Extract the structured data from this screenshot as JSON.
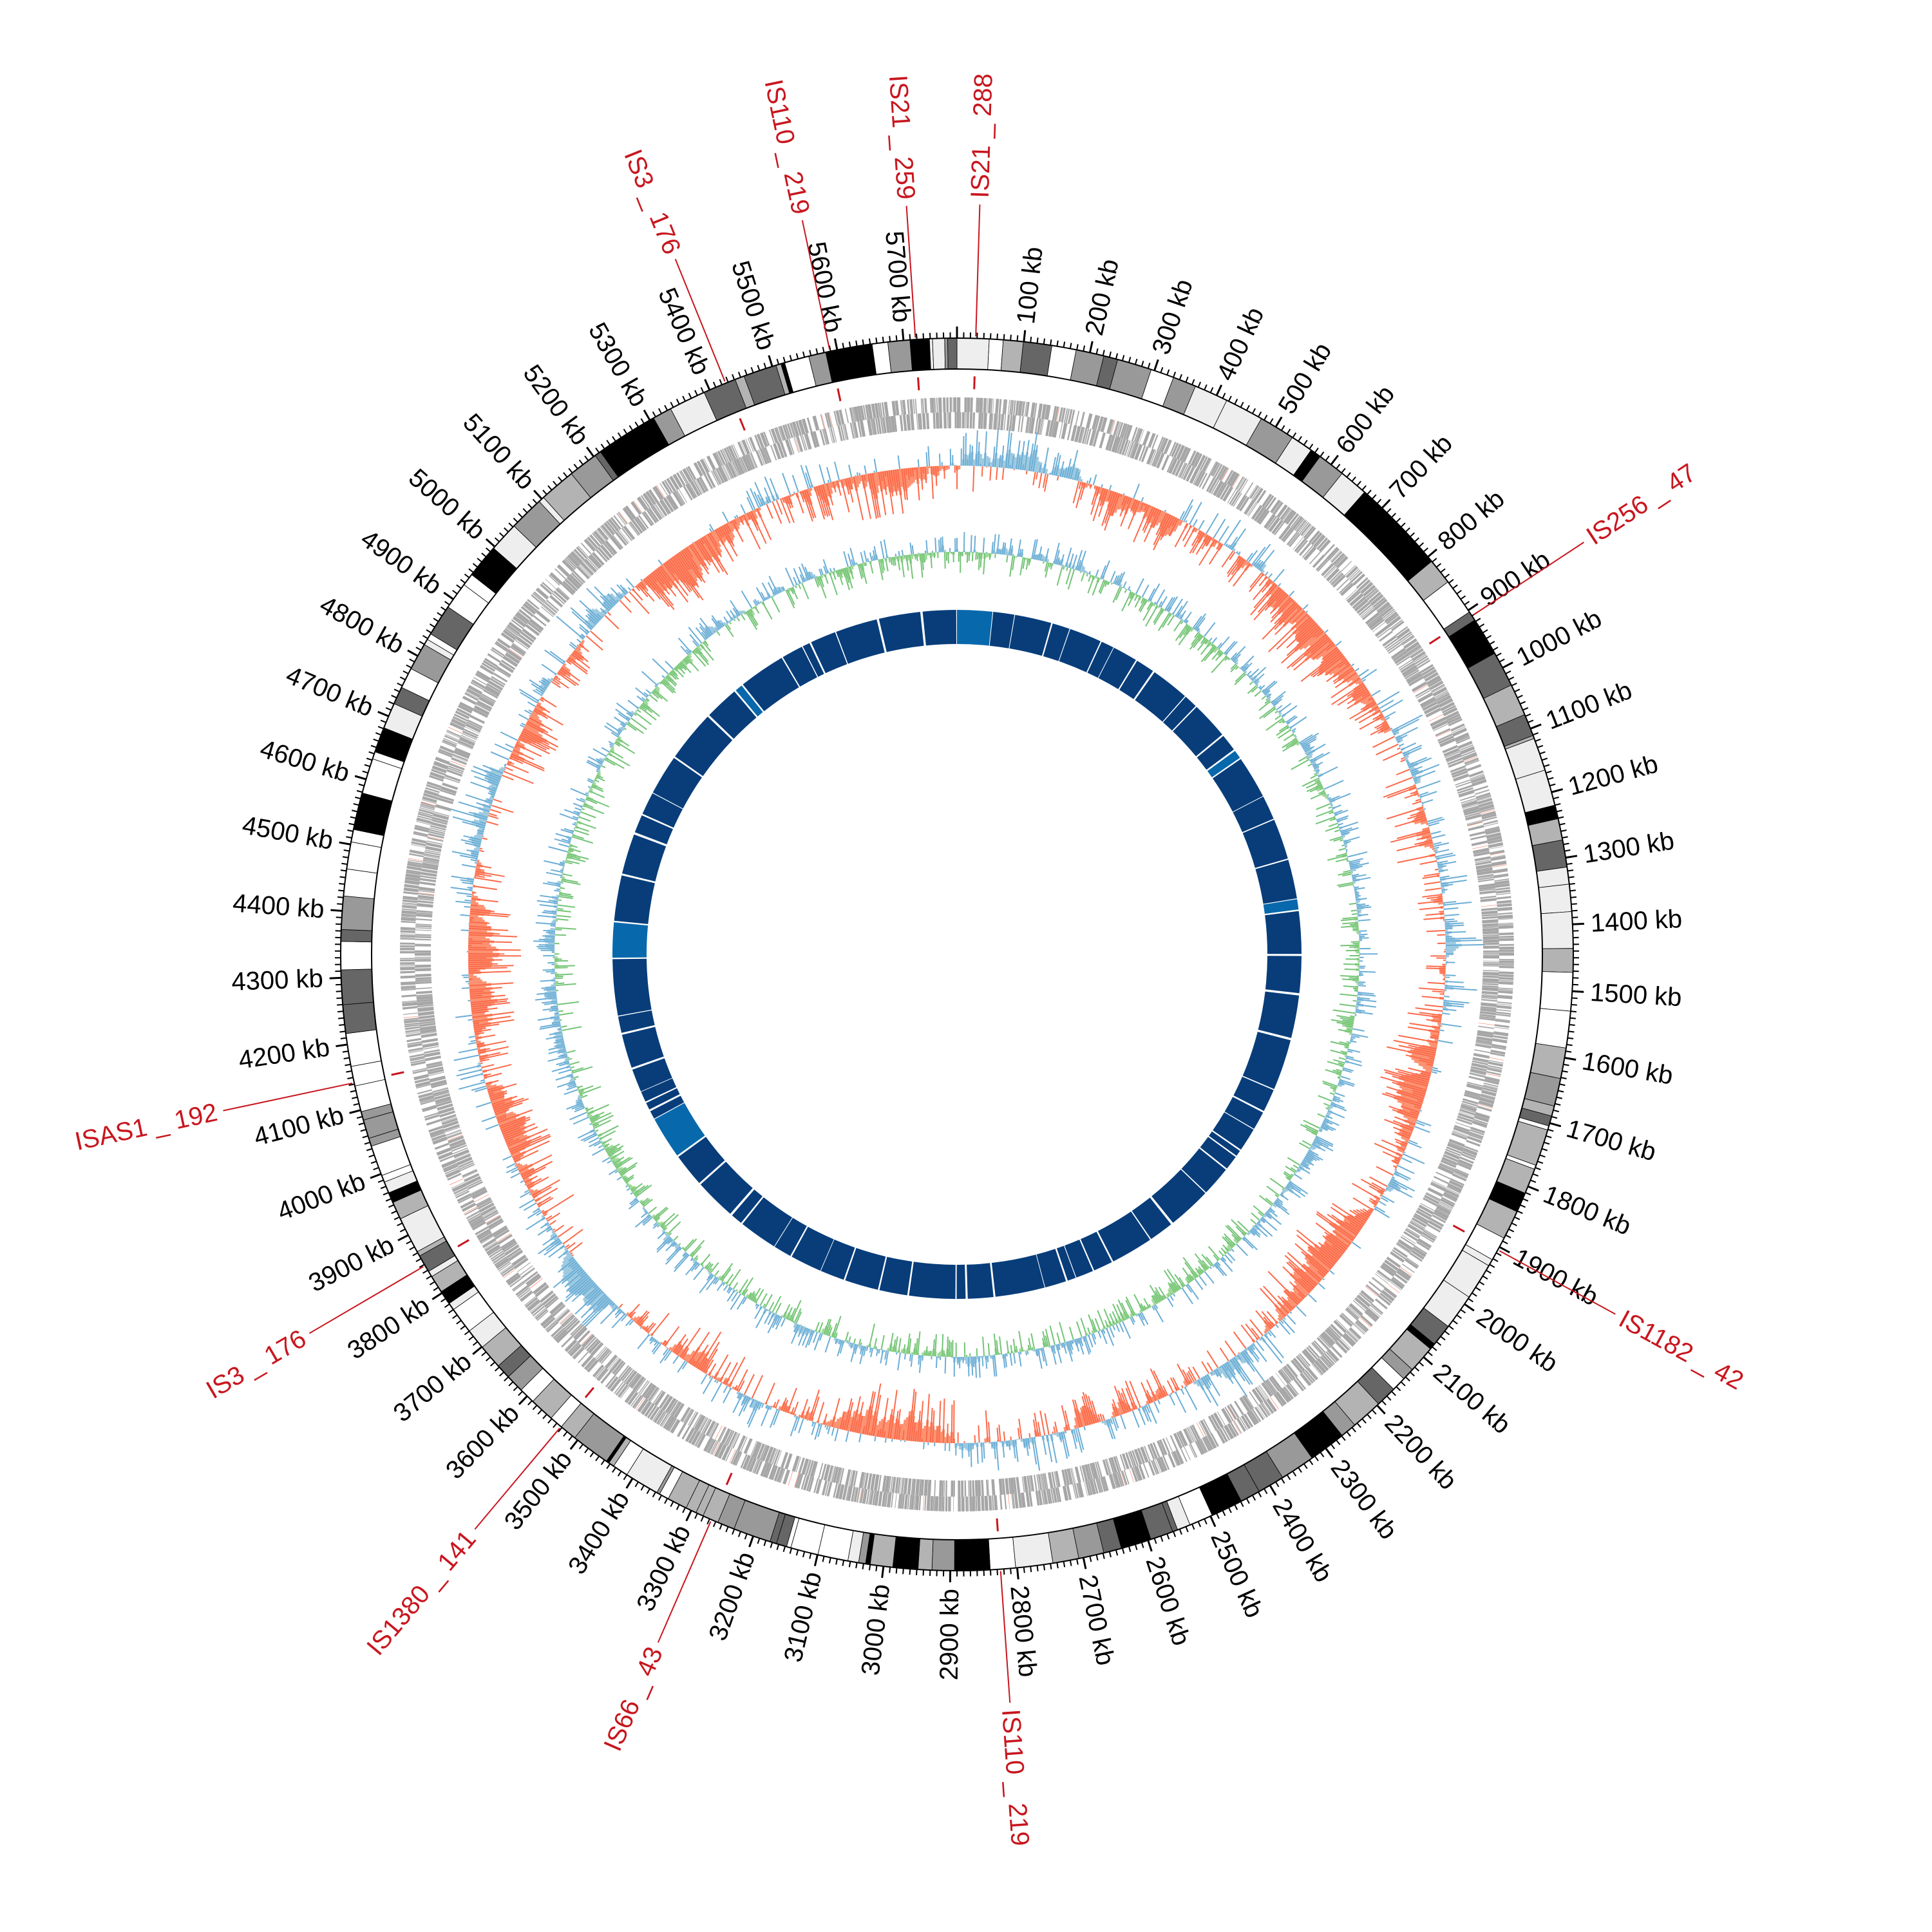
{
  "chart_data": {
    "type": "circular-genome",
    "title": "",
    "genome_length_kb": 5780,
    "minor_tick_step_kb": 10,
    "major_tick_step_kb": 100,
    "tick_labels": [
      "100 kb",
      "200 kb",
      "300 kb",
      "400 kb",
      "500 kb",
      "600 kb",
      "700 kb",
      "800 kb",
      "900 kb",
      "1000 kb",
      "1100 kb",
      "1200 kb",
      "1300 kb",
      "1400 kb",
      "1500 kb",
      "1600 kb",
      "1700 kb",
      "1800 kb",
      "1900 kb",
      "2000 kb",
      "2100 kb",
      "2200 kb",
      "2300 kb",
      "2400 kb",
      "2500 kb",
      "2600 kb",
      "2700 kb",
      "2800 kb",
      "2900 kb",
      "3000 kb",
      "3100 kb",
      "3200 kb",
      "3300 kb",
      "3400 kb",
      "3500 kb",
      "3600 kb",
      "3700 kb",
      "3800 kb",
      "3900 kb",
      "4000 kb",
      "4100 kb",
      "4200 kb",
      "4300 kb",
      "4400 kb",
      "4500 kb",
      "4600 kb",
      "4700 kb",
      "4800 kb",
      "4900 kb",
      "5000 kb",
      "5100 kb",
      "5200 kb",
      "5300 kb",
      "5400 kb",
      "5500 kb",
      "5600 kb",
      "5700 kb"
    ],
    "insertion_sequences": [
      {
        "name": "IS21 _ 288",
        "position_kb": 28
      },
      {
        "name": "IS256 _ 47",
        "position_kb": 910
      },
      {
        "name": "IS1182 _ 42",
        "position_kb": 1905
      },
      {
        "name": "IS110 _ 219",
        "position_kb": 2825
      },
      {
        "name": "IS66 _ 43",
        "position_kb": 3267
      },
      {
        "name": "IS1380 _ 141",
        "position_kb": 3532
      },
      {
        "name": "IS3 _ 176",
        "position_kb": 3848
      },
      {
        "name": "ISAS1 _ 192",
        "position_kb": 4142
      },
      {
        "name": "IS3 _ 176",
        "position_kb": 5426
      },
      {
        "name": "IS110 _ 219",
        "position_kb": 5589
      },
      {
        "name": "IS21 _ 259",
        "position_kb": 5718
      }
    ],
    "tracks": [
      {
        "id": "ideogram",
        "kind": "bands",
        "shades": [
          "#000000",
          "#666666",
          "#b3b3b3",
          "#eeeeee",
          "#999999",
          "#ffffff"
        ]
      },
      {
        "id": "is-markers",
        "kind": "markers"
      },
      {
        "id": "genes-forward",
        "kind": "features"
      },
      {
        "id": "genes-reverse",
        "kind": "features"
      },
      {
        "id": "gc-skew",
        "kind": "histogram",
        "bin_kb": 4,
        "range": [
          -1,
          1
        ]
      },
      {
        "id": "gc-content",
        "kind": "histogram",
        "bin_kb": 4,
        "range": [
          -1,
          1
        ]
      },
      {
        "id": "inner-blocks",
        "kind": "blocks"
      }
    ]
  },
  "colors": {
    "is_label": "#c8161e",
    "gene": "#a6a6a6",
    "gene_highlight": "#fb6a4a",
    "skew_pos": "#6baed6",
    "skew_pos_fill": "#9ecae1",
    "skew_neg": "#fb6a4a",
    "skew_neg_fill": "#fc9272",
    "gc_pos": "#6baed6",
    "gc_pos_fill": "#9ecae1",
    "gc_neg": "#74c476",
    "gc_neg_fill": "#a1d99b",
    "block": "#083d7a",
    "block_alt": "#0868ac"
  }
}
